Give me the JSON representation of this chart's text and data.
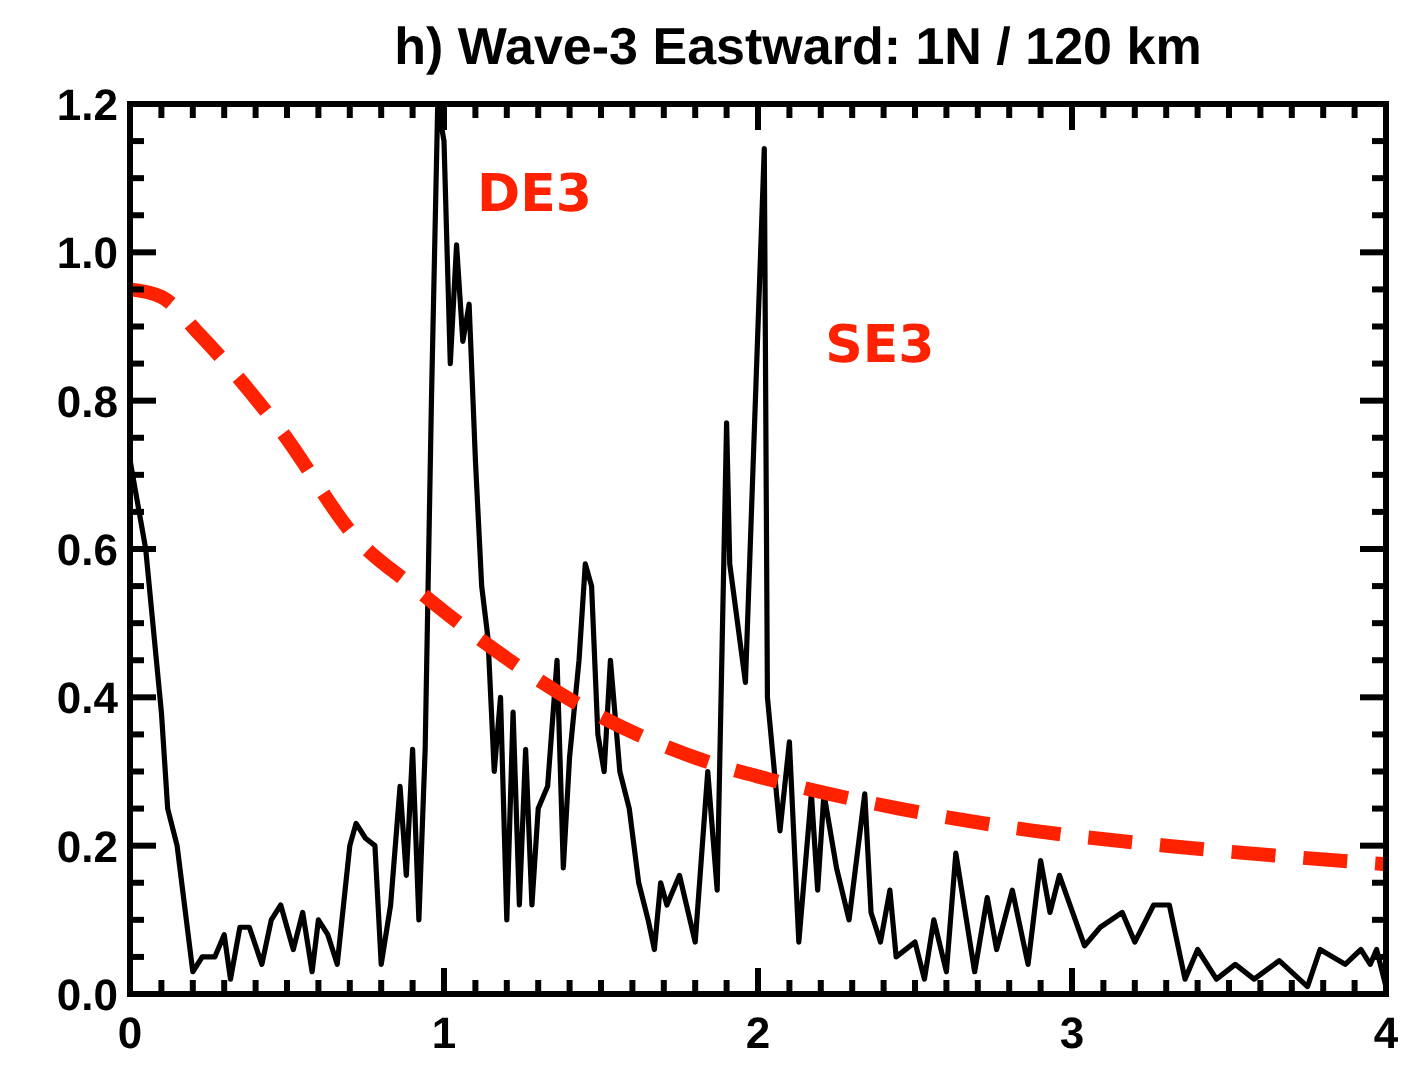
{
  "chart_data": {
    "type": "line",
    "title": "h) Wave-3 Eastward: 1N / 120 km",
    "xlim": [
      0,
      4
    ],
    "ylim": [
      0,
      1.2
    ],
    "xticks": [
      0,
      {
        "value": 0.1,
        "label": null
      },
      {
        "value": 0.2,
        "label": null
      },
      {
        "value": 0.3,
        "label": null
      },
      {
        "value": 0.4,
        "label": null
      },
      {
        "value": 0.5,
        "label": null
      },
      {
        "value": 0.6,
        "label": null
      },
      {
        "value": 0.7,
        "label": null
      },
      {
        "value": 0.8,
        "label": null
      },
      {
        "value": 0.9,
        "label": null
      },
      1,
      {
        "value": 1.1,
        "label": null
      },
      {
        "value": 1.2,
        "label": null
      },
      {
        "value": 1.3,
        "label": null
      },
      {
        "value": 1.4,
        "label": null
      },
      {
        "value": 1.5,
        "label": null
      },
      {
        "value": 1.6,
        "label": null
      },
      {
        "value": 1.7,
        "label": null
      },
      {
        "value": 1.8,
        "label": null
      },
      {
        "value": 1.9,
        "label": null
      },
      2,
      {
        "value": 2.1,
        "label": null
      },
      {
        "value": 2.2,
        "label": null
      },
      {
        "value": 2.3,
        "label": null
      },
      {
        "value": 2.4,
        "label": null
      },
      {
        "value": 2.5,
        "label": null
      },
      {
        "value": 2.6,
        "label": null
      },
      {
        "value": 2.7,
        "label": null
      },
      {
        "value": 2.8,
        "label": null
      },
      {
        "value": 2.9,
        "label": null
      },
      3,
      {
        "value": 3.1,
        "label": null
      },
      {
        "value": 3.2,
        "label": null
      },
      {
        "value": 3.3,
        "label": null
      },
      {
        "value": 3.4,
        "label": null
      },
      {
        "value": 3.5,
        "label": null
      },
      {
        "value": 3.6,
        "label": null
      },
      {
        "value": 3.7,
        "label": null
      },
      {
        "value": 3.8,
        "label": null
      },
      {
        "value": 3.9,
        "label": null
      },
      4
    ],
    "yticks": [
      {
        "value": 0,
        "label": "0.0"
      },
      {
        "value": 0.05,
        "label": null
      },
      {
        "value": 0.1,
        "label": null
      },
      {
        "value": 0.15,
        "label": null
      },
      {
        "value": 0.2,
        "label": "0.2"
      },
      {
        "value": 0.25,
        "label": null
      },
      {
        "value": 0.3,
        "label": null
      },
      {
        "value": 0.35,
        "label": null
      },
      {
        "value": 0.4,
        "label": "0.4"
      },
      {
        "value": 0.45,
        "label": null
      },
      {
        "value": 0.5,
        "label": null
      },
      {
        "value": 0.55,
        "label": null
      },
      {
        "value": 0.6,
        "label": "0.6"
      },
      {
        "value": 0.65,
        "label": null
      },
      {
        "value": 0.7,
        "label": null
      },
      {
        "value": 0.75,
        "label": null
      },
      {
        "value": 0.8,
        "label": "0.8"
      },
      {
        "value": 0.85,
        "label": null
      },
      {
        "value": 0.9,
        "label": null
      },
      {
        "value": 0.95,
        "label": null
      },
      {
        "value": 1.0,
        "label": "1.0"
      },
      {
        "value": 1.05,
        "label": null
      },
      {
        "value": 1.1,
        "label": null
      },
      {
        "value": 1.15,
        "label": null
      },
      {
        "value": 1.2,
        "label": "1.2"
      }
    ],
    "grid": false,
    "marker": "none",
    "annotations": [
      "DE3",
      "SE3"
    ],
    "series": [
      {
        "color": "#000000",
        "line_style": "solid",
        "x": [
          0,
          0.05,
          0.1,
          0.12,
          0.15,
          0.2,
          0.23,
          0.27,
          0.3,
          0.32,
          0.35,
          0.38,
          0.42,
          0.45,
          0.48,
          0.52,
          0.55,
          0.58,
          0.6,
          0.63,
          0.66,
          0.7,
          0.72,
          0.75,
          0.78,
          0.8,
          0.83,
          0.86,
          0.88,
          0.9,
          0.92,
          0.94,
          0.96,
          0.98,
          1.0,
          1.02,
          1.04,
          1.06,
          1.08,
          1.1,
          1.12,
          1.14,
          1.16,
          1.18,
          1.2,
          1.22,
          1.24,
          1.26,
          1.28,
          1.3,
          1.33,
          1.36,
          1.38,
          1.4,
          1.43,
          1.45,
          1.47,
          1.49,
          1.51,
          1.53,
          1.56,
          1.59,
          1.62,
          1.65,
          1.67,
          1.69,
          1.71,
          1.75,
          1.8,
          1.84,
          1.87,
          1.9,
          1.91,
          1.96,
          2.02,
          2.03,
          2.07,
          2.1,
          2.13,
          2.17,
          2.19,
          2.21,
          2.25,
          2.29,
          2.34,
          2.36,
          2.39,
          2.42,
          2.44,
          2.5,
          2.53,
          2.56,
          2.6,
          2.63,
          2.69,
          2.73,
          2.76,
          2.81,
          2.86,
          2.9,
          2.93,
          2.96,
          3.04,
          3.09,
          3.16,
          3.2,
          3.26,
          3.31,
          3.36,
          3.4,
          3.46,
          3.52,
          3.58,
          3.66,
          3.75,
          3.79,
          3.87,
          3.92,
          3.95,
          3.97,
          4.0
        ],
        "values": [
          0.72,
          0.6,
          0.38,
          0.25,
          0.2,
          0.03,
          0.05,
          0.05,
          0.08,
          0.02,
          0.09,
          0.09,
          0.04,
          0.1,
          0.12,
          0.06,
          0.11,
          0.03,
          0.1,
          0.08,
          0.04,
          0.2,
          0.23,
          0.21,
          0.2,
          0.04,
          0.12,
          0.28,
          0.16,
          0.33,
          0.1,
          0.33,
          0.8,
          1.2,
          1.15,
          0.85,
          1.01,
          0.88,
          0.93,
          0.72,
          0.55,
          0.48,
          0.3,
          0.4,
          0.1,
          0.38,
          0.12,
          0.33,
          0.12,
          0.25,
          0.28,
          0.45,
          0.17,
          0.32,
          0.45,
          0.58,
          0.55,
          0.35,
          0.3,
          0.45,
          0.3,
          0.25,
          0.15,
          0.1,
          0.06,
          0.15,
          0.12,
          0.16,
          0.07,
          0.3,
          0.14,
          0.77,
          0.58,
          0.42,
          1.14,
          0.4,
          0.22,
          0.34,
          0.07,
          0.27,
          0.14,
          0.27,
          0.17,
          0.1,
          0.27,
          0.11,
          0.07,
          0.14,
          0.05,
          0.07,
          0.02,
          0.1,
          0.03,
          0.19,
          0.03,
          0.13,
          0.06,
          0.14,
          0.04,
          0.18,
          0.11,
          0.16,
          0.065,
          0.09,
          0.11,
          0.07,
          0.12,
          0.12,
          0.02,
          0.06,
          0.02,
          0.04,
          0.02,
          0.045,
          0.01,
          0.06,
          0.04,
          0.06,
          0.04,
          0.06,
          0.01
        ]
      },
      {
        "color": "#ff2200",
        "line_style": "dashed",
        "x": [
          0,
          0.1,
          0.22,
          0.48,
          0.73,
          0.9,
          1.11,
          1.43,
          1.86,
          2.03,
          2.45,
          2.88,
          3.3,
          4.0
        ],
        "values": [
          0.95,
          0.94,
          0.89,
          0.76,
          0.61,
          0.55,
          0.48,
          0.39,
          0.31,
          0.29,
          0.25,
          0.22,
          0.2,
          0.175
        ]
      }
    ]
  }
}
